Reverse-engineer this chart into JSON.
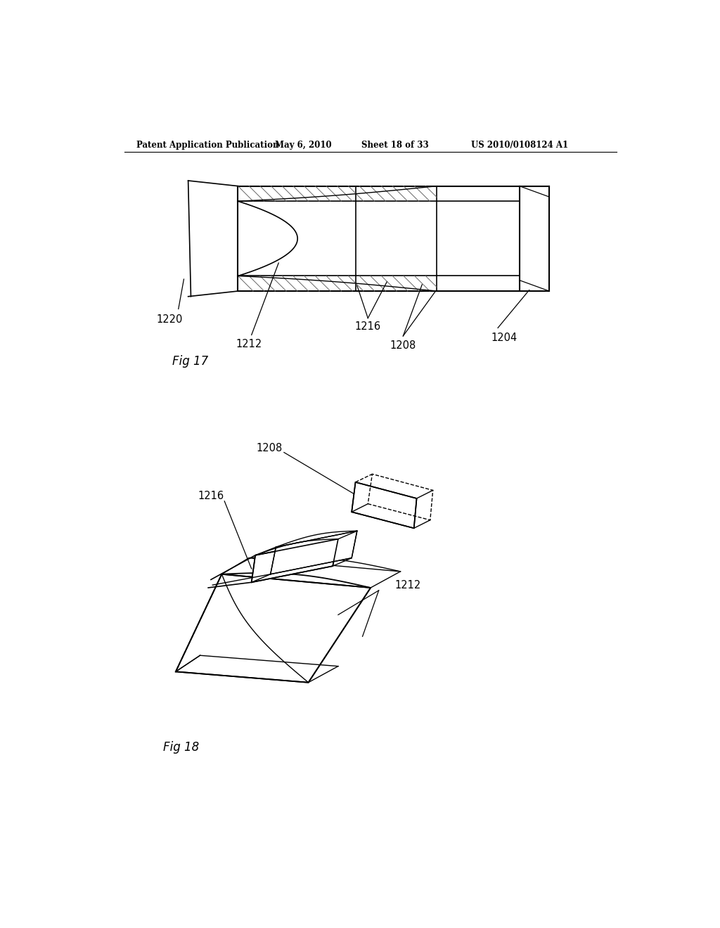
{
  "background_color": "#ffffff",
  "header_text": "Patent Application Publication",
  "header_date": "May 6, 2010",
  "header_sheet": "Sheet 18 of 33",
  "header_patent": "US 2010/0108124 A1",
  "fig17_label": "Fig 17",
  "fig18_label": "Fig 18"
}
